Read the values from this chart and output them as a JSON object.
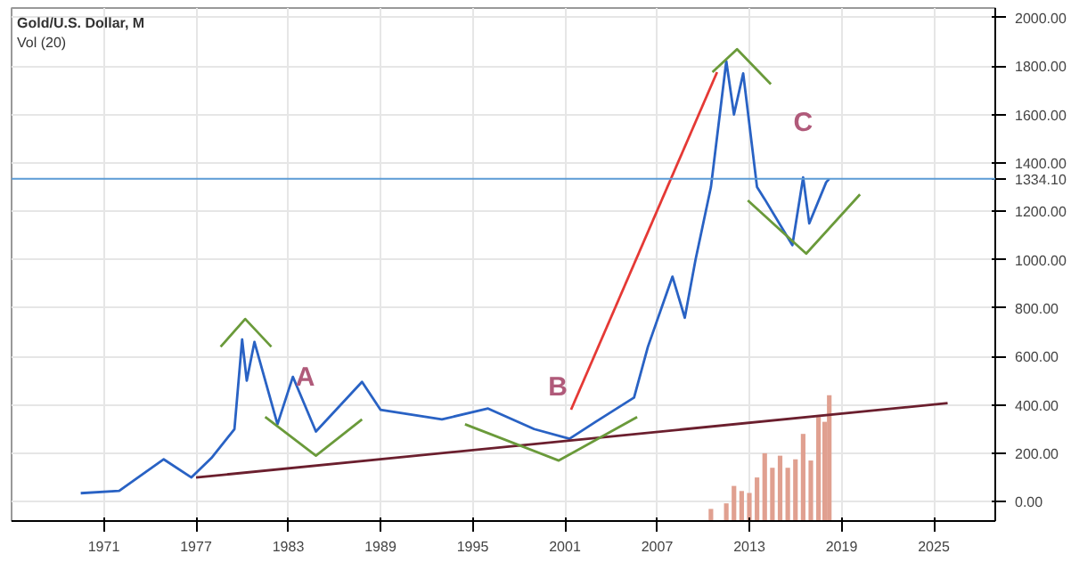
{
  "chart_data": {
    "type": "line",
    "title": "Gold/U.S. Dollar, M",
    "subtitle": "Vol (20)",
    "xlim": [
      1965,
      2029
    ],
    "ylim": [
      -80,
      2040
    ],
    "xticks": [
      1971,
      1977,
      1983,
      1989,
      1995,
      2001,
      2007,
      2013,
      2019,
      2025
    ],
    "yticks": [
      {
        "value": 0,
        "label": "0.00"
      },
      {
        "value": 200,
        "label": "200.00"
      },
      {
        "value": 400,
        "label": "400.00"
      },
      {
        "value": 600,
        "label": "600.00"
      },
      {
        "value": 800,
        "label": "800.00"
      },
      {
        "value": 1000,
        "label": "1000.00"
      },
      {
        "value": 1200,
        "label": "1200.00"
      },
      {
        "value": 1400,
        "label": "1400.00"
      },
      {
        "value": 1600,
        "label": "1600.00"
      },
      {
        "value": 1800,
        "label": "1800.00"
      },
      {
        "value": 2000,
        "label": "2000.00"
      }
    ],
    "grid": true,
    "ref_lines": [
      {
        "axis": "y",
        "value": 1334.1,
        "label": "1334.10",
        "color": "#5b9bd5"
      }
    ],
    "annotations": [
      {
        "text": "A",
        "x": 1984.1,
        "y": 450
      },
      {
        "text": "B",
        "x": 2001.4,
        "y": 380
      },
      {
        "text": "C",
        "x": 2016.5,
        "y": 1340
      }
    ],
    "series": [
      {
        "type": "bar",
        "color": "#e0a090",
        "x": [
          2010.5,
          2011.5,
          2012,
          2012.5,
          2013,
          2013.5,
          2014,
          2014.5,
          2015,
          2015.5,
          2016,
          2016.5,
          2017,
          2017.5,
          2017.9,
          2018.2
        ],
        "values": [
          50,
          73,
          145,
          124,
          116,
          180,
          280,
          220,
          270,
          220,
          255,
          360,
          250,
          430,
          410,
          520
        ],
        "base": [
          -80,
          -80,
          -80,
          -80,
          -80,
          -80,
          -80,
          -80,
          -80,
          -80,
          -80,
          -80,
          -80,
          -80,
          -80,
          -80
        ]
      },
      {
        "color": "#2962c4",
        "x": [
          1969.5,
          1972,
          1973,
          1974.9,
          1976.7,
          1978,
          1979.5,
          1980,
          1980.3,
          1980.8,
          1982.3,
          1983.3,
          1984.8,
          1987.8,
          1989,
          1993,
          1996,
          1999,
          2001.3,
          2003,
          2005.5,
          2006.4,
          2008,
          2008.8,
          2009.5,
          2010.5,
          2011.5,
          2012,
          2012.6,
          2013.5,
          2014,
          2015.8,
          2016.5,
          2016.9,
          2018,
          2018.2
        ],
        "values": [
          35,
          45,
          90,
          175,
          100,
          180,
          300,
          670,
          500,
          660,
          320,
          516,
          290,
          495,
          380,
          340,
          385,
          300,
          260,
          330,
          430,
          640,
          930,
          760,
          1000,
          1300,
          1820,
          1600,
          1770,
          1300,
          1250,
          1060,
          1340,
          1150,
          1320,
          1334
        ]
      },
      {
        "type": "line",
        "color": "#6b1f2e",
        "x": [
          1977,
          2025.9
        ],
        "values": [
          100,
          407
        ]
      },
      {
        "type": "line",
        "color": "#6a9a3a",
        "x": [
          1978.6,
          1980.2,
          1981.9
        ],
        "values": [
          640,
          755,
          640
        ]
      },
      {
        "type": "line",
        "color": "#6a9a3a",
        "x": [
          1981.5,
          1984.8,
          1987.8
        ],
        "values": [
          350,
          190,
          340
        ]
      },
      {
        "type": "line",
        "color": "#6a9a3a",
        "x": [
          1994.5,
          2000.6,
          2005.7
        ],
        "values": [
          320,
          170,
          350
        ]
      },
      {
        "type": "line",
        "color": "#6a9a3a",
        "x": [
          2010.6,
          2012.2,
          2014.4
        ],
        "values": [
          1775,
          1870,
          1725
        ]
      },
      {
        "type": "line",
        "color": "#6a9a3a",
        "x": [
          2012.9,
          2016.7,
          2020.2
        ],
        "values": [
          1245,
          1025,
          1270
        ]
      },
      {
        "type": "line",
        "color": "#e53935",
        "x": [
          2001.4,
          2010.9
        ],
        "values": [
          380,
          1775
        ]
      }
    ]
  }
}
